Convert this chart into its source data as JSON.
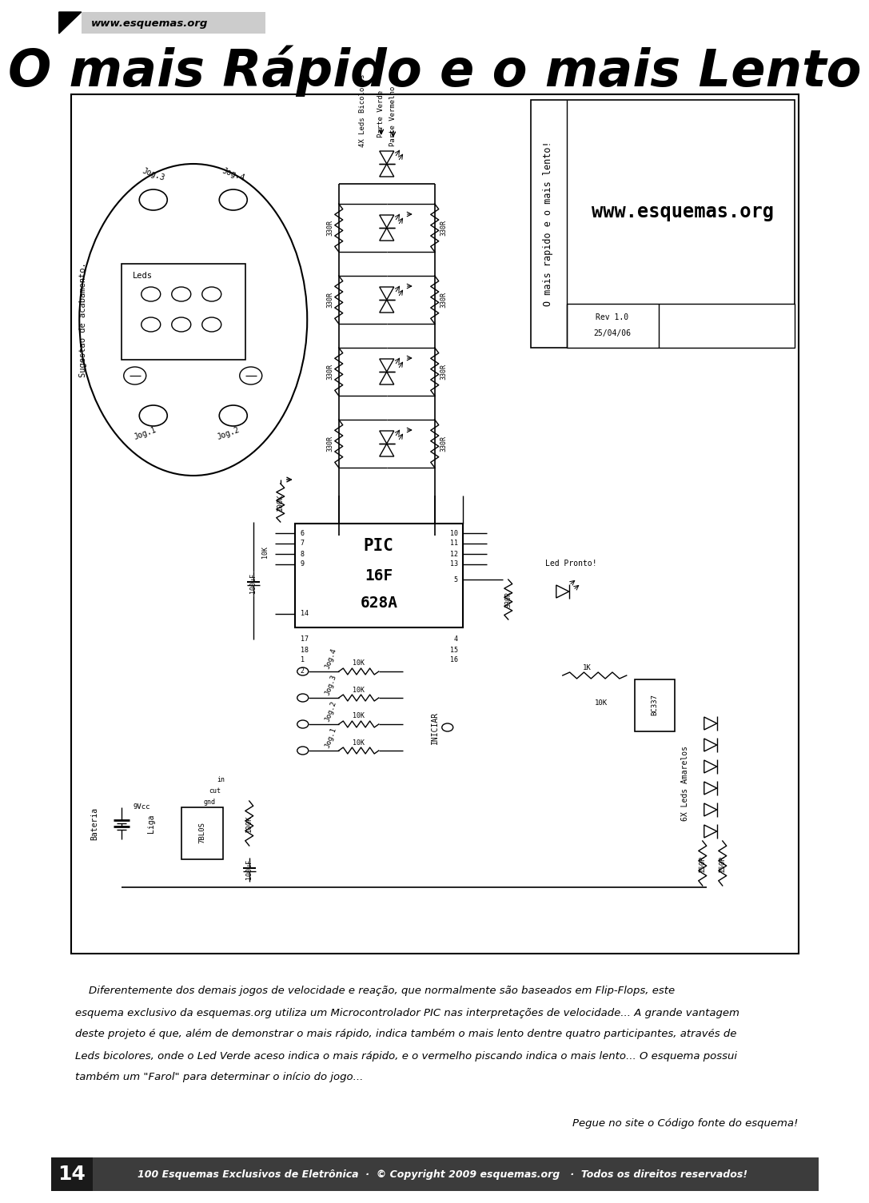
{
  "title": "O mais Rápido e o mais Lento",
  "website": "www.esquemas.org",
  "bg_color": "#ffffff",
  "footer_number": "14",
  "footer_text": "100 Esquemas Exclusivos de Eletrônica  ·  © Copyright 2009 esquemas.org   ·  Todos os direitos reservados!",
  "body_lines": [
    "    Diferentemente dos demais jogos de velocidade e reação, que normalmente são baseados em Flip-Flops, este",
    "esquema exclusivo da esquemas.org utiliza um Microcontrolador PIC nas interpretações de velocidade... A grande vantagem",
    "deste projeto é que, além de demonstrar o mais rápido, indica também o mais lento dentre quatro participantes, através de",
    "Leds bicolores, onde o Led Verde aceso indica o mais rápido, e o vermelho piscando indica o mais lento... O esquema possui",
    "também um \"Farol\" para determinar o início do jogo..."
  ],
  "note_text": "Pegue no site o Código fonte do esquema!",
  "schematic_title1": "O mais rapido e o mais lento!",
  "schematic_website": "www.esquemas.org",
  "rev_text": "Rev 1.0",
  "date_text": "25/04/06",
  "led_bicolor_label": "4X Leds Bicolores",
  "led_verde_label": "Parte Verde",
  "led_vermelho_label": "Parte Vermelho",
  "led_amarelo_label": "6X Leds Amarelos",
  "led_pronto_label": "Led Pronto!",
  "iniciar_label": "INICIAR",
  "bateria_label": "Bateria",
  "liga_label": "Liga",
  "sugestao_label": "Sugestao de acabamento.",
  "leds_box_label": "Leds",
  "ic_label": "7BL0S",
  "bc337_label": "BC337",
  "pic_lines": [
    "PIC",
    "16F",
    "628A"
  ],
  "res_330": "330R",
  "res_10k": "10K",
  "res_100k": "100K",
  "res_1k": "1K",
  "res_150r": "150R",
  "cap_100uf": "100uF",
  "vcc_label": "9Vcc",
  "gnd_label": "gnd",
  "cut_label": "cut",
  "in_label": "in"
}
